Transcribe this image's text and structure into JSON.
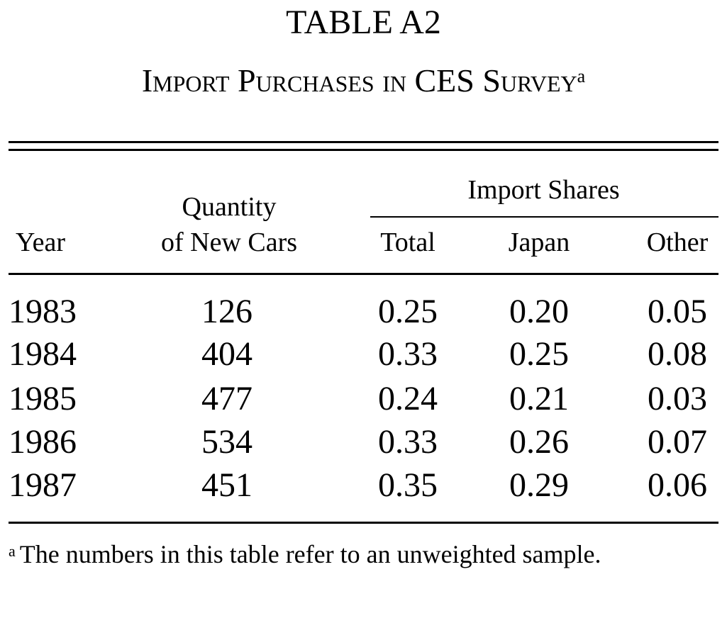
{
  "table": {
    "title": "TABLE A2",
    "subtitle": "Import Purchases in CES Survey",
    "subtitle_marker": "a",
    "headers": {
      "year": "Year",
      "quantity_line1": "Quantity",
      "quantity_line2": "of New Cars",
      "group": "Import Shares",
      "total": "Total",
      "japan": "Japan",
      "other": "Other"
    },
    "rows": [
      {
        "year": "1983",
        "quantity": "126",
        "total": "0.25",
        "japan": "0.20",
        "other": "0.05"
      },
      {
        "year": "1984",
        "quantity": "404",
        "total": "0.33",
        "japan": "0.25",
        "other": "0.08"
      },
      {
        "year": "1985",
        "quantity": "477",
        "total": "0.24",
        "japan": "0.21",
        "other": "0.03"
      },
      {
        "year": "1986",
        "quantity": "534",
        "total": "0.33",
        "japan": "0.26",
        "other": "0.07"
      },
      {
        "year": "1987",
        "quantity": "451",
        "total": "0.35",
        "japan": "0.29",
        "other": "0.06"
      }
    ],
    "footnote_marker": "a",
    "footnote_text": "The numbers in this table refer to an unweighted sample."
  }
}
